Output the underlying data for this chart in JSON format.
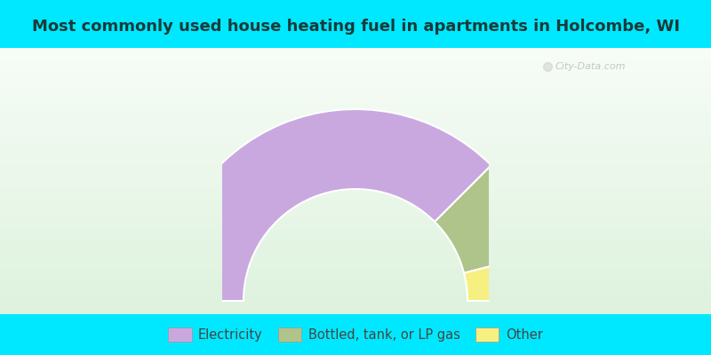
{
  "title": "Most commonly used house heating fuel in apartments in Holcombe, WI",
  "title_color": "#1a3a3a",
  "title_fontsize": 13,
  "slices": [
    {
      "label": "Electricity",
      "value": 75,
      "color": "#c9a8e0"
    },
    {
      "label": "Bottled, tank, or LP gas",
      "value": 17,
      "color": "#afc48a"
    },
    {
      "label": "Other",
      "value": 8,
      "color": "#f5f080"
    }
  ],
  "background_cyan": "#00e8ff",
  "legend_fontsize": 10.5,
  "legend_text_color": "#444444",
  "watermark": "City-Data.com",
  "bg_top_color": "#e8f5e9",
  "bg_bottom_color": "#c8e6c9"
}
